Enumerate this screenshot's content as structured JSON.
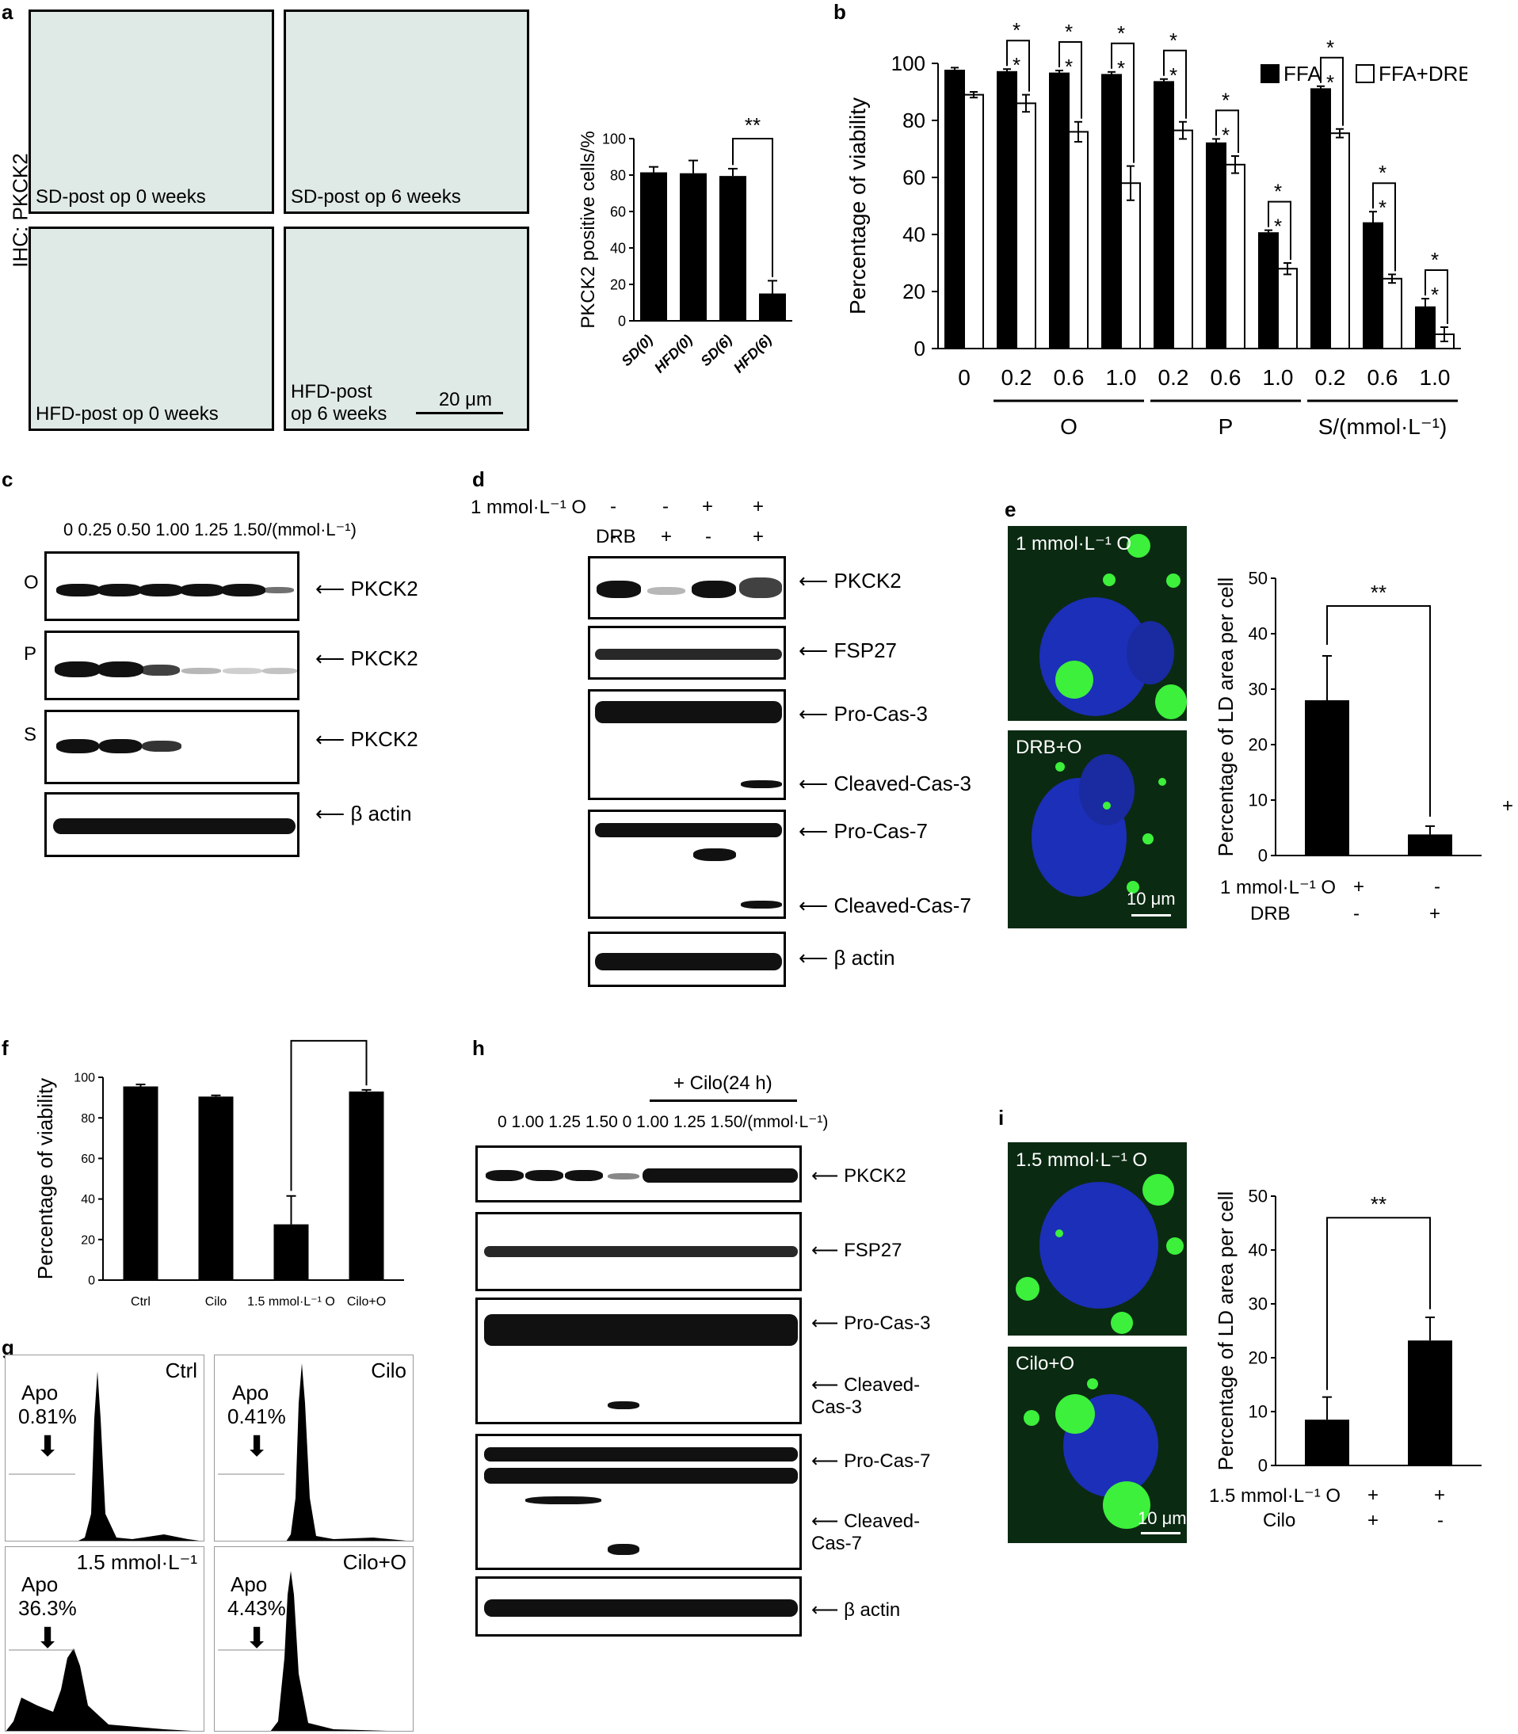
{
  "panels": {
    "a": "a",
    "b": "b",
    "c": "c",
    "d": "d",
    "e": "e",
    "f": "f",
    "g": "g",
    "h": "h",
    "i": "i"
  },
  "panel_a": {
    "side_label": "IHC: PKCK2",
    "images": [
      "SD-post op 0 weeks",
      "SD-post op 6 weeks",
      "HFD-post op 0 weeks",
      "HFD-post\nop 6 weeks"
    ],
    "scale": "20 μm"
  },
  "panel_c": {
    "header": "0   0.25  0.50  1.00  1.25  1.50/(mmol·L⁻¹)",
    "rows": [
      "O",
      "P",
      "S",
      ""
    ],
    "labels": [
      "PKCK2",
      "PKCK2",
      "PKCK2",
      "β actin"
    ]
  },
  "panel_d": {
    "row1": "1 mmol·L⁻¹ O",
    "row1_signs": [
      "-",
      "-",
      "+",
      "+"
    ],
    "row2": "DRB",
    "row2_signs": [
      "-",
      "+",
      "-",
      "+"
    ],
    "labels": [
      "PKCK2",
      "FSP27",
      "Pro-Cas-3",
      "Cleaved-Cas-3",
      "Pro-Cas-7",
      "Cleaved-Cas-7",
      "β actin"
    ]
  },
  "panel_e": {
    "img1": "1 mmol·L⁻¹ O",
    "img2": "DRB+O",
    "scale": "10 μm",
    "cond1": "1 mmol·L⁻¹ O",
    "cond1_signs": [
      "+",
      "-"
    ],
    "cond2": "DRB",
    "cond2_signs": [
      "-",
      "+"
    ],
    "stray": "+"
  },
  "panel_g": {
    "plots": [
      {
        "name": "Ctrl",
        "apo": "Apo",
        "pct": "0.81%"
      },
      {
        "name": "Cilo",
        "apo": "Apo",
        "pct": "0.41%"
      },
      {
        "name": "1.5 mmol·L⁻¹",
        "apo": "Apo",
        "pct": "36.3%"
      },
      {
        "name": "Cilo+O",
        "apo": "Apo",
        "pct": "4.43%"
      }
    ]
  },
  "panel_h": {
    "cilo": "+ Cilo(24 h)",
    "header": "0   1.00 1.25 1.50   0   1.00 1.25 1.50/(mmol·L⁻¹)",
    "labels": [
      "PKCK2",
      "FSP27",
      "Pro-Cas-3",
      "Cleaved-\nCas-3",
      "Pro-Cas-7",
      "Cleaved-\nCas-7",
      "β actin"
    ]
  },
  "panel_i": {
    "img1": "1.5 mmol·L⁻¹ O",
    "img2": "Cilo+O",
    "scale": "10 μm",
    "cond1": "1.5 mmol·L⁻¹ O",
    "cond1_signs": [
      "+",
      "+"
    ],
    "cond2": "Cilo",
    "cond2_signs": [
      "+",
      "-"
    ]
  },
  "chart_data": [
    {
      "id": "a",
      "type": "bar",
      "categories": [
        "SD(0)",
        "HFD(0)",
        "SD(6)",
        "HFD(6)"
      ],
      "values": [
        81.5,
        81,
        79.5,
        15
      ],
      "errors": [
        3,
        7,
        4,
        7
      ],
      "ylabel": "PKCK2 positive cells/%",
      "ylim": [
        0,
        100
      ],
      "yticks": [
        0,
        20,
        40,
        60,
        80,
        100
      ],
      "significance": [
        {
          "from": 2,
          "to": 3,
          "label": "**"
        }
      ]
    },
    {
      "id": "b",
      "type": "bar",
      "ylabel": "Percentage of viability",
      "ylim": [
        0,
        100
      ],
      "yticks": [
        0,
        20,
        40,
        60,
        80,
        100
      ],
      "categories": [
        "0",
        "0.2",
        "0.6",
        "1.0",
        "0.2",
        "0.6",
        "1.0",
        "0.2",
        "0.6",
        "1.0"
      ],
      "groups": [
        "O",
        "P",
        "S/(mmol·L⁻¹)"
      ],
      "series": [
        {
          "name": "FFA",
          "color": "#000000",
          "values": [
            97.5,
            97,
            96.5,
            96,
            93.5,
            72,
            40.5,
            91,
            44,
            14.5
          ],
          "errors": [
            1,
            1,
            1,
            1,
            1,
            1.5,
            1,
            1,
            4,
            3
          ]
        },
        {
          "name": "FFA+DRB",
          "color": "#ffffff",
          "values": [
            89,
            86,
            76,
            58,
            76.5,
            64.5,
            28,
            75.5,
            24.5,
            5
          ],
          "errors": [
            1,
            3,
            3.5,
            6,
            3,
            3,
            2,
            1.5,
            1.5,
            2.5
          ]
        }
      ],
      "significance": "*"
    },
    {
      "id": "e",
      "type": "bar",
      "categories": [
        "1 mmol·L⁻¹ O",
        "DRB+O"
      ],
      "values": [
        28,
        3.8
      ],
      "errors": [
        8,
        1.5
      ],
      "ylabel": "Percentage of LD area per cell",
      "ylim": [
        0,
        50
      ],
      "yticks": [
        0,
        10,
        20,
        30,
        40,
        50
      ],
      "significance": "**"
    },
    {
      "id": "f",
      "type": "bar",
      "categories": [
        "Ctrl",
        "Cilo",
        "1.5 mmol·L⁻¹ O",
        "Cilo+O"
      ],
      "values": [
        95.5,
        90.5,
        27.5,
        93
      ],
      "errors": [
        1,
        0.6,
        14,
        0.8
      ],
      "ylabel": "Percentage of viability",
      "ylim": [
        0,
        100
      ],
      "yticks": [
        0,
        20,
        40,
        60,
        80,
        100
      ],
      "significance": "**"
    },
    {
      "id": "i",
      "type": "bar",
      "categories": [
        "1.5 mmol·L⁻¹ O",
        "Cilo+O"
      ],
      "values": [
        8.5,
        23.2
      ],
      "errors": [
        4.2,
        4.3
      ],
      "ylabel": "Percentage of LD area per cell",
      "ylim": [
        0,
        50
      ],
      "yticks": [
        0,
        10,
        20,
        30,
        40,
        50
      ],
      "significance": "**"
    }
  ]
}
